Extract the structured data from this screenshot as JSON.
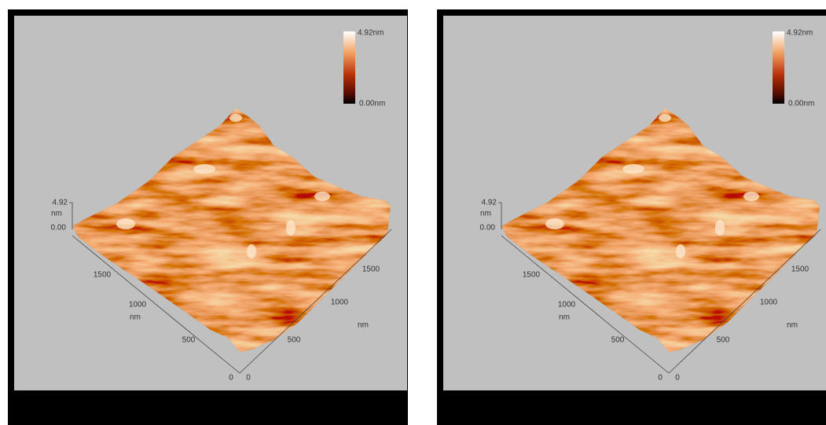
{
  "panels": [
    {
      "colorbar": {
        "max": "4.92nm",
        "min": "0.00nm"
      },
      "z_axis": {
        "max": "4.92",
        "unit": "nm",
        "min": "0.00"
      },
      "left_axis": {
        "ticks": [
          "1500",
          "1000",
          "500",
          "0"
        ],
        "unit": "nm"
      },
      "right_axis": {
        "ticks": [
          "0",
          "500",
          "1000",
          "1500"
        ],
        "unit": "nm"
      }
    },
    {
      "colorbar": {
        "max": "4.92nm",
        "min": "0.00nm"
      },
      "z_axis": {
        "max": "4.92",
        "unit": "nm",
        "min": "0.00"
      },
      "left_axis": {
        "ticks": [
          "1500",
          "1000",
          "500",
          "0"
        ],
        "unit": "nm"
      },
      "right_axis": {
        "ticks": [
          "0",
          "500",
          "1000",
          "1500"
        ],
        "unit": "nm"
      }
    }
  ]
}
